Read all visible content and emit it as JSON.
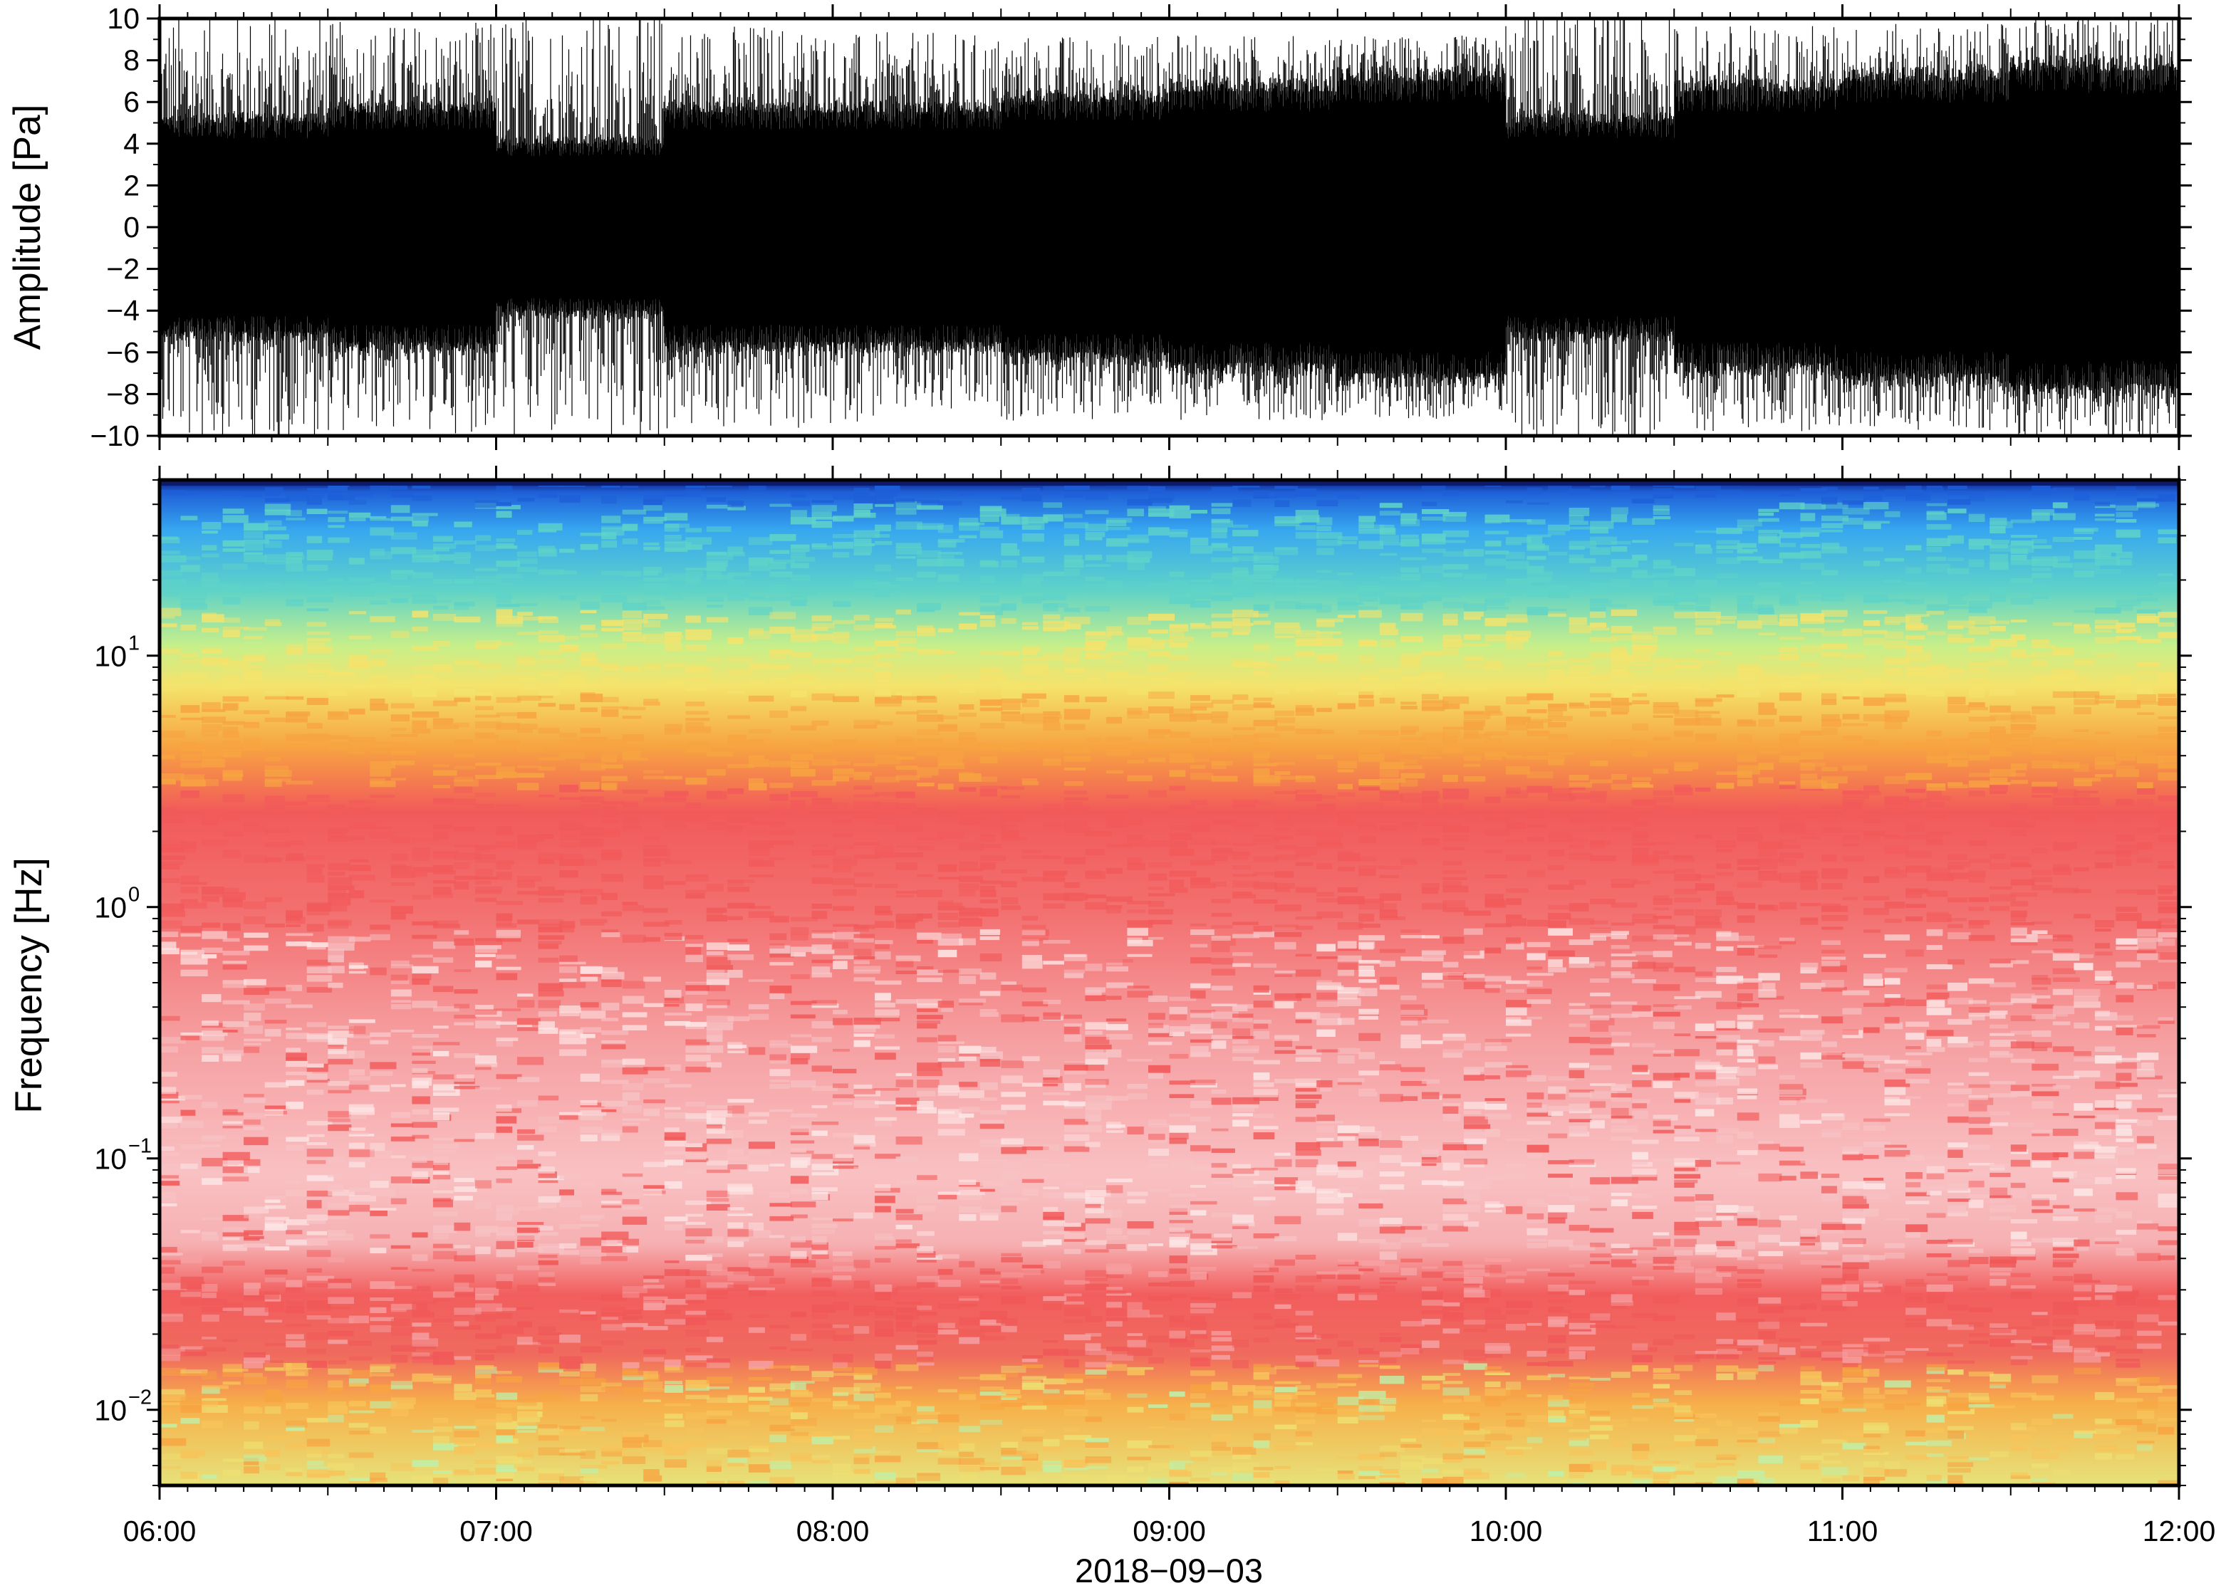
{
  "chart_data": [
    {
      "type": "line",
      "panel": "waveform",
      "ylabel": "Amplitude [Pa]",
      "ylim": [
        -10,
        10
      ],
      "yticks": [
        10,
        8,
        6,
        4,
        2,
        0,
        -2,
        -4,
        -6,
        -8,
        -10
      ],
      "ytick_labels": [
        "10",
        "8",
        "6",
        "4",
        "2",
        "0",
        "−2",
        "−4",
        "−6",
        "−8",
        "−10"
      ],
      "xlim": [
        "06:00",
        "12:00"
      ],
      "series": [
        {
          "color": "#000000",
          "envelope_note_values": "approximate absolute peak amplitude (Pa) in 12 half-hour windows",
          "time": [
            "06:00",
            "06:30",
            "07:00",
            "07:30",
            "08:00",
            "08:30",
            "09:00",
            "09:30",
            "10:00",
            "10:30",
            "11:00",
            "11:30"
          ],
          "peak_abs": [
            10,
            9.5,
            10,
            9.5,
            9,
            9,
            9,
            9,
            10,
            9.5,
            9.5,
            10
          ],
          "dense_core_abs": [
            5,
            5.5,
            4,
            5.5,
            5.5,
            6,
            6.5,
            7,
            5,
            6.5,
            7,
            7.5
          ]
        }
      ]
    },
    {
      "type": "heatmap",
      "panel": "spectrogram",
      "ylabel": "Frequency [Hz]",
      "xlabel": "2018−09−03",
      "yscale": "log",
      "ylim": [
        0.005,
        50
      ],
      "yticks": [
        0.01,
        0.1,
        1,
        10
      ],
      "ytick_labels": [
        {
          "base": "10",
          "exp": "−2"
        },
        {
          "base": "10",
          "exp": "−1"
        },
        {
          "base": "10",
          "exp": "0"
        },
        {
          "base": "10",
          "exp": "1"
        }
      ],
      "xlim": [
        "06:00",
        "12:00"
      ],
      "xticks": [
        "06:00",
        "07:00",
        "08:00",
        "09:00",
        "10:00",
        "11:00",
        "12:00"
      ],
      "colormap": [
        "#1a237e",
        "#1e5fd8",
        "#37a7f0",
        "#5fd3c8",
        "#c7ef8a",
        "#f4e36c",
        "#f7a441",
        "#f25a5a",
        "#f9b7b8",
        "#fff1f1"
      ],
      "frequency_bands": [
        {
          "range_hz": [
            40,
            50
          ],
          "color": "#1e5fd8"
        },
        {
          "range_hz": [
            15,
            40
          ],
          "color": "#5fd3c8"
        },
        {
          "range_hz": [
            7,
            15
          ],
          "color": "#f4e36c"
        },
        {
          "range_hz": [
            3,
            7
          ],
          "color": "#f7a441"
        },
        {
          "range_hz": [
            0.8,
            3
          ],
          "color": "#f25a5a"
        },
        {
          "range_hz": [
            0.04,
            0.8
          ],
          "color": "#f9b7b8"
        },
        {
          "range_hz": [
            0.015,
            0.04
          ],
          "color": "#f25a5a"
        },
        {
          "range_hz": [
            0.005,
            0.015
          ],
          "color": "#f7c45a"
        }
      ]
    }
  ]
}
